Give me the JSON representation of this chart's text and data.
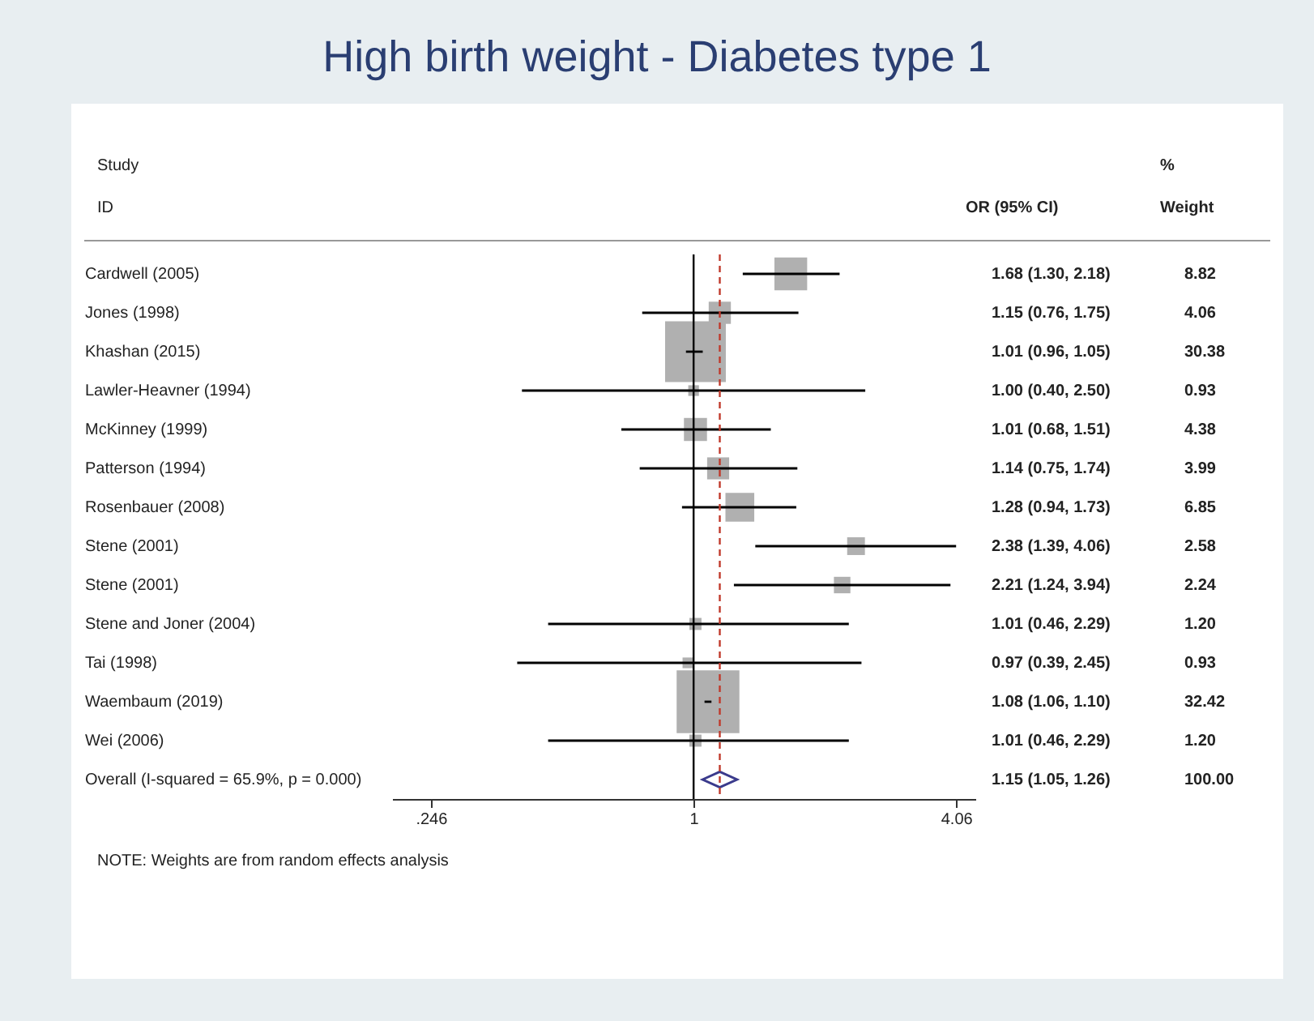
{
  "chart_data": {
    "type": "scatter",
    "title": "High birth weight - Diabetes type 1",
    "ylabel": "Study\nID",
    "orientation": "horizontal",
    "log": "x",
    "marker": "square",
    "grid": false,
    "categories": [
      "Cardwell (2005)",
      "Jones (1998)",
      "Khashan (2015)",
      "Lawler-Heavner (1994)",
      "McKinney (1999)",
      "Patterson (1994)",
      "Rosenbauer (2008)",
      "Stene (2001)",
      "Stene (2001)",
      "Stene and Joner (2004)",
      "Tai (1998)",
      "Waembaum (2019)",
      "Wei (2006)",
      "Overall  (I-squared = 65.9%, p = 0.000)"
    ],
    "series": [
      {
        "color": "#b0b0b0",
        "values": [
          1.68,
          1.15,
          1.01,
          1.0,
          1.01,
          1.14,
          1.28,
          2.38,
          2.21,
          1.01,
          0.97,
          1.08,
          1.01,
          null
        ],
        "errors": [
          [
            1.3,
            2.18
          ],
          [
            0.76,
            1.75
          ],
          [
            0.96,
            1.05
          ],
          [
            0.4,
            2.5
          ],
          [
            0.68,
            1.51
          ],
          [
            0.75,
            1.74
          ],
          [
            0.94,
            1.73
          ],
          [
            1.39,
            4.06
          ],
          [
            1.24,
            3.94
          ],
          [
            0.46,
            2.29
          ],
          [
            0.39,
            2.45
          ],
          [
            1.06,
            1.1
          ],
          [
            0.46,
            2.29
          ],
          null
        ],
        "sizes": [
          0.272,
          0.125,
          0.937,
          0.029,
          0.135,
          0.123,
          0.211,
          0.08,
          0.069,
          0.037,
          0.029,
          1,
          0.037,
          null
        ],
        "value_labels": [
          "1.68 (1.30, 2.18)",
          "1.15 (0.76, 1.75)",
          "1.01 (0.96, 1.05)",
          "1.00 (0.40, 2.50)",
          "1.01 (0.68, 1.51)",
          "1.14 (0.75, 1.74)",
          "1.28 (0.94, 1.73)",
          "2.38 (1.39, 4.06)",
          "2.21 (1.24, 3.94)",
          "1.01 (0.46, 2.29)",
          "0.97 (0.39, 2.45)",
          "1.08 (1.06, 1.10)",
          "1.01 (0.46, 2.29)",
          null
        ]
      },
      {
        "type": "scatter",
        "marker": "diamond",
        "color": "#3a3a8c",
        "values": [
          null,
          null,
          null,
          null,
          null,
          null,
          null,
          null,
          null,
          null,
          null,
          null,
          null,
          1.15
        ]
      }
    ],
    "xlim": [
      0.2,
      4.5
    ],
    "xticks": [
      {
        "value": 0.246,
        "label": ".246"
      },
      1,
      4.06
    ],
    "ref_lines": [
      {
        "axis": "x",
        "value": 1,
        "color": "#000000"
      },
      {
        "axis": "x",
        "value": 1.15,
        "color": "#c0392b",
        "line_style": "dashed"
      }
    ],
    "annotations": [
      "OR (95% CI)",
      "%\nWeight",
      "NOTE: Weights are from random effects analysis",
      "8.82",
      "4.06",
      "30.38",
      "0.93",
      "4.38",
      "3.99",
      "6.85",
      "2.58",
      "2.24",
      "1.20",
      "0.93",
      "32.42",
      "1.20",
      "100.00",
      "1.15 (1.05, 1.26)"
    ]
  }
}
